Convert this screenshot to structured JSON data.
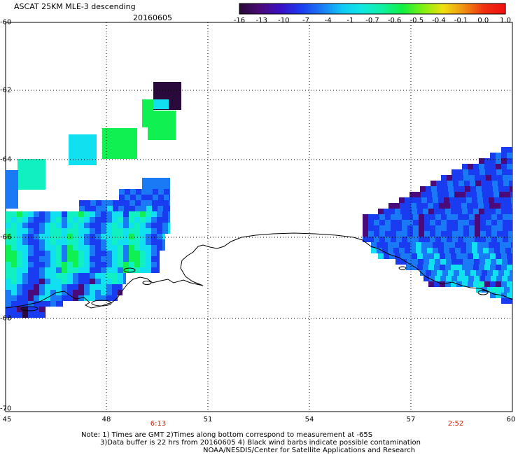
{
  "header": {
    "title": "ASCAT 25KM MLE-3 descending",
    "date": "20160605"
  },
  "colorbar": {
    "labels": [
      "-16",
      "-13",
      "-10",
      "-7",
      "-4",
      "-1",
      "-0.7",
      "-0.6",
      "-0.5",
      "-0.4",
      "-0.1",
      "0.0",
      "1.0"
    ],
    "colors": [
      "#2a0a3a",
      "#4b0a7a",
      "#3a10c8",
      "#1a3cf0",
      "#1a7af5",
      "#10c8f5",
      "#10e8c8",
      "#10f078",
      "#30f010",
      "#c8f010",
      "#f0c810",
      "#f07010",
      "#f01010"
    ]
  },
  "axes": {
    "lat_labels": [
      "-60",
      "-62",
      "-64",
      "-66",
      "-68",
      "-70"
    ],
    "lon_labels": [
      "45",
      "48",
      "51",
      "54",
      "57",
      "60"
    ]
  },
  "pass_times": [
    "6:13",
    "2:52"
  ],
  "notes": [
    "Note: 1) Times are GMT 2)Times along bottom correspond to measurement at -65S",
    "3)Data buffer is 22 hrs from 20160605 4) Black wind barbs indicate possible contamination",
    "NOAA/NESDIS/Center for Satellite Applications and Research"
  ],
  "map_data": {
    "type": "gridded-swath",
    "lat_range": [
      -70,
      -60
    ],
    "lon_range": [
      45,
      60
    ],
    "colors": {
      "dark_purple": "#2a0a3a",
      "purple": "#4b0a7a",
      "blue": "#1a3cf0",
      "light_blue": "#1a7af5",
      "cyan": "#10e0f0",
      "teal": "#10f0c0",
      "green": "#10f050",
      "coast": "#000000"
    }
  }
}
